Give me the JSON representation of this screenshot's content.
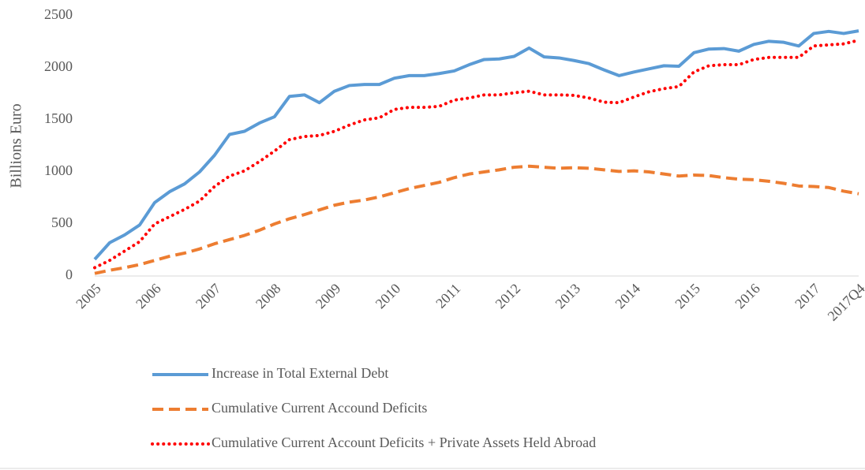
{
  "chart_data": {
    "type": "line",
    "y_label": "Billions Euro",
    "categories": [
      "2005",
      null,
      null,
      null,
      "2006",
      null,
      null,
      null,
      "2007",
      null,
      null,
      null,
      "2008",
      null,
      null,
      null,
      "2009",
      null,
      null,
      null,
      "2010",
      null,
      null,
      null,
      "2011",
      null,
      null,
      null,
      "2012",
      null,
      null,
      null,
      "2013",
      null,
      null,
      null,
      "2014",
      null,
      null,
      null,
      "2015",
      null,
      null,
      null,
      "2016",
      null,
      null,
      null,
      "2017",
      null,
      null,
      "2017Q4"
    ],
    "series": [
      {
        "name": "Increase in Total External Debt",
        "color": "#5b9bd5",
        "style": "solid",
        "values": [
          160,
          320,
          395,
          490,
          705,
          810,
          885,
          1000,
          1160,
          1360,
          1390,
          1470,
          1530,
          1725,
          1740,
          1665,
          1775,
          1830,
          1840,
          1840,
          1900,
          1925,
          1925,
          1945,
          1970,
          2030,
          2080,
          2085,
          2110,
          2190,
          2105,
          2095,
          2070,
          2040,
          1980,
          1925,
          1960,
          1990,
          2020,
          2015,
          2145,
          2180,
          2185,
          2160,
          2225,
          2255,
          2245,
          2210,
          2330,
          2350,
          2330,
          2355
        ]
      },
      {
        "name": "Cumulative Current Accound Deficits",
        "color": "#ed7d31",
        "style": "dashed",
        "values": [
          25,
          55,
          80,
          110,
          150,
          190,
          220,
          260,
          310,
          350,
          390,
          440,
          500,
          550,
          590,
          635,
          680,
          710,
          730,
          760,
          800,
          840,
          870,
          900,
          945,
          980,
          1000,
          1020,
          1045,
          1055,
          1045,
          1035,
          1040,
          1035,
          1020,
          1005,
          1010,
          1000,
          980,
          960,
          970,
          965,
          945,
          930,
          925,
          910,
          890,
          865,
          860,
          850,
          815,
          790
        ]
      },
      {
        "name": "Cumulative Current Account Deficits + Private Assets Held Abroad",
        "color": "#ff0000",
        "style": "dotted",
        "values": [
          80,
          150,
          240,
          330,
          500,
          570,
          640,
          720,
          860,
          960,
          1010,
          1100,
          1200,
          1310,
          1340,
          1350,
          1390,
          1450,
          1500,
          1520,
          1600,
          1620,
          1620,
          1630,
          1690,
          1710,
          1740,
          1740,
          1760,
          1775,
          1740,
          1740,
          1735,
          1710,
          1670,
          1665,
          1720,
          1770,
          1800,
          1820,
          1960,
          2020,
          2030,
          2030,
          2080,
          2100,
          2100,
          2100,
          2210,
          2220,
          2230,
          2265
        ]
      }
    ],
    "ylim": [
      0,
      2500
    ],
    "yticks": [
      0,
      500,
      1000,
      1500,
      2000,
      2500
    ],
    "grid": false
  }
}
